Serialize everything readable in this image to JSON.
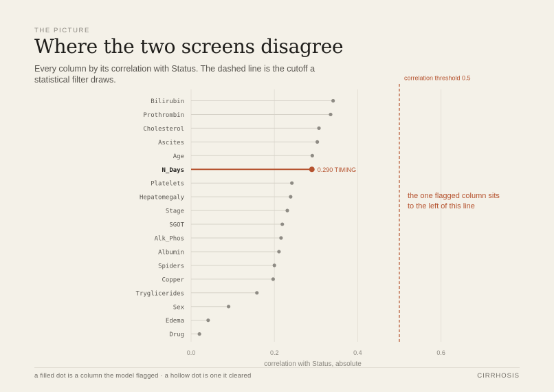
{
  "header": {
    "eyebrow": "THE PICTURE",
    "title": "Where the two screens disagree",
    "subtitle": "Every column by its correlation with Status. The dashed line is the cutoff a statistical filter draws."
  },
  "footer": {
    "note": "a filled dot is a column the model flagged · a hollow dot is one it cleared",
    "source": "CIRRHOSIS"
  },
  "colors": {
    "accent": "#b5532f",
    "dot": "#8e8b84",
    "stem": "#d6d2c8",
    "grid": "#e4e0d6"
  },
  "chart_data": {
    "type": "lollipop",
    "xlabel": "correlation with Status, absolute",
    "xlim": [
      0,
      0.68
    ],
    "xticks": [
      0.0,
      0.2,
      0.4,
      0.6
    ],
    "xtick_labels": [
      "0.0",
      "0.2",
      "0.4",
      "0.6"
    ],
    "grid": true,
    "categories": [
      "Bilirubin",
      "Prothrombin",
      "Cholesterol",
      "Ascites",
      "Age",
      "N_Days",
      "Platelets",
      "Hepatomegaly",
      "Stage",
      "SGOT",
      "Alk_Phos",
      "Albumin",
      "Spiders",
      "Copper",
      "Tryglicerides",
      "Sex",
      "Edema",
      "Drug"
    ],
    "values": [
      0.341,
      0.335,
      0.307,
      0.303,
      0.291,
      0.29,
      0.242,
      0.239,
      0.231,
      0.219,
      0.216,
      0.211,
      0.2,
      0.197,
      0.158,
      0.09,
      0.041,
      0.02
    ],
    "highlight": {
      "category": "N_Days",
      "label": "0.290 TIMING"
    },
    "threshold": {
      "value": 0.5,
      "label": "correlation threshold 0.5"
    },
    "annotation": {
      "lines": [
        "the one flagged column sits",
        "to the left of this line"
      ]
    }
  }
}
